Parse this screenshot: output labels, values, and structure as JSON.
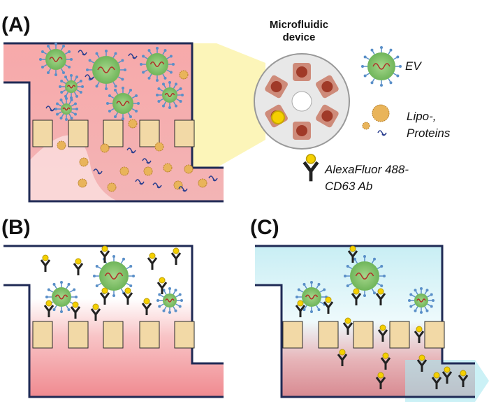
{
  "panels": [
    {
      "label": "(A)"
    },
    {
      "label": "(B)"
    },
    {
      "label": "(C)"
    }
  ],
  "device": {
    "title_lines": [
      "Microfluidic",
      "device"
    ]
  },
  "legend": [
    {
      "lines": [
        "EV"
      ]
    },
    {
      "lines": [
        "Lipo-,",
        "Proteins"
      ]
    },
    {
      "lines": [
        "AlexaFluor 488-",
        "CD63 Ab"
      ]
    }
  ]
}
